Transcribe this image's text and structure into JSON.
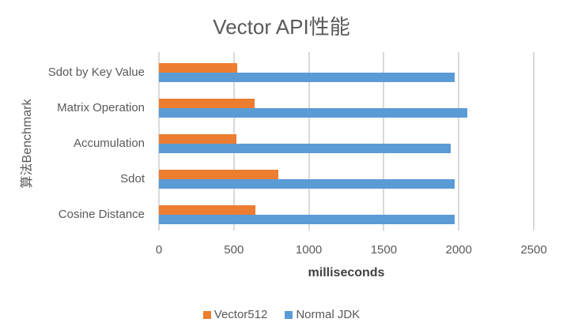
{
  "chart_data": {
    "type": "bar",
    "orientation": "horizontal",
    "title": "Vector API性能",
    "xlabel": "milliseconds",
    "ylabel": "算法Benchmark",
    "xlim": [
      0,
      2500
    ],
    "xticks": [
      "0",
      "500",
      "1000",
      "1500",
      "2000",
      "2500"
    ],
    "grid": true,
    "legend_position": "bottom",
    "categories": [
      "Sdot by Key Value",
      "Matrix Operation",
      "Accumulation",
      "Sdot",
      "Cosine Distance"
    ],
    "series": [
      {
        "name": "Vector512",
        "color": "#ed7d31",
        "values": [
          520,
          640,
          515,
          795,
          645
        ]
      },
      {
        "name": "Normal JDK",
        "color": "#5b9bd5",
        "values": [
          1975,
          2055,
          1945,
          1970,
          1975
        ]
      }
    ]
  }
}
